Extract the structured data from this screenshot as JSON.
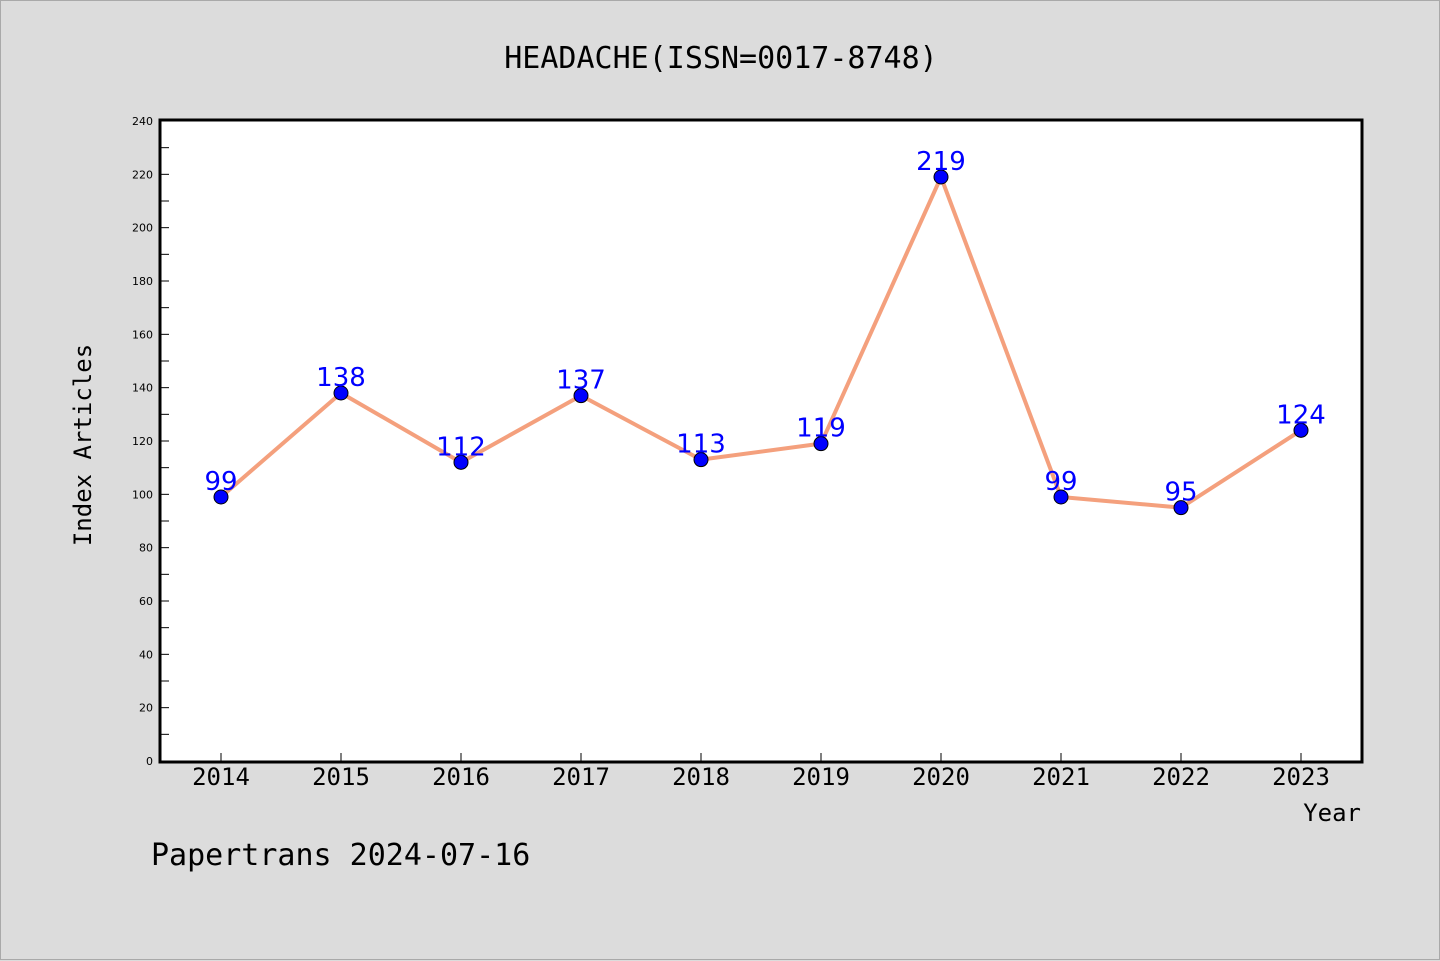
{
  "chart_data": {
    "type": "line",
    "title": "HEADACHE(ISSN=0017-8748)",
    "xlabel": "Year",
    "ylabel": "Index Articles",
    "categories": [
      "2014",
      "2015",
      "2016",
      "2017",
      "2018",
      "2019",
      "2020",
      "2021",
      "2022",
      "2023"
    ],
    "values": [
      99,
      138,
      112,
      137,
      113,
      119,
      219,
      99,
      95,
      124
    ],
    "ylim": [
      0,
      240
    ],
    "yticks": [
      0,
      20,
      40,
      60,
      80,
      100,
      120,
      140,
      160,
      180,
      200,
      220,
      240
    ],
    "grid": false,
    "legend": "none",
    "line_color": "#f4a07d",
    "marker_color": "#0000ff",
    "label_color": "#0000ff"
  },
  "footer": "Papertrans 2024-07-16"
}
